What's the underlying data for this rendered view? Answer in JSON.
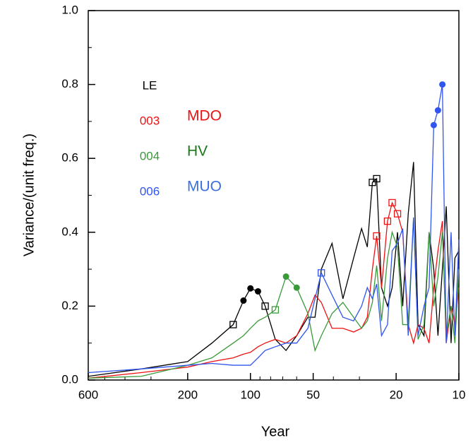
{
  "chart_data": {
    "type": "line",
    "xlabel": "Year",
    "ylabel": "Variance/(unit freq.)",
    "xscale": "log",
    "xlim": [
      600,
      10
    ],
    "ylim": [
      0,
      1
    ],
    "xticks": [
      600,
      200,
      100,
      50,
      20,
      10
    ],
    "xminorticks": [
      500,
      400,
      300,
      90,
      80,
      70,
      60,
      40,
      30
    ],
    "yticks": [
      {
        "value": 0,
        "label": "0.0"
      },
      0.2,
      0.4,
      0.6,
      0.8,
      {
        "value": 1,
        "label": "1.0"
      }
    ],
    "yminorticks": [
      0.1,
      0.3,
      0.5,
      0.7,
      0.9
    ],
    "legend_title": "LE",
    "x": [
      600,
      334,
      200,
      153,
      121,
      108,
      100,
      92,
      85,
      76,
      67.5,
      60,
      53,
      49,
      45.7,
      40.6,
      36,
      32,
      29.3,
      27.5,
      26,
      24.8,
      23.5,
      22,
      20.9,
      19.7,
      18.6,
      17.5,
      16.5,
      15.7,
      14.7,
      13.9,
      13.2,
      12.6,
      12.0,
      11.5,
      10.9,
      10.45,
      10
    ],
    "series": [
      {
        "color": "#000000",
        "values": [
          0.01,
          0.03,
          0.05,
          0.1,
          0.15,
          0.215,
          0.248,
          0.24,
          0.2,
          0.11,
          0.08,
          0.12,
          0.17,
          0.17,
          0.3,
          0.37,
          0.22,
          0.33,
          0.41,
          0.36,
          0.535,
          0.545,
          0.25,
          0.2,
          0.25,
          0.4,
          0.2,
          0.45,
          0.59,
          0.15,
          0.12,
          0.4,
          0.3,
          0.12,
          0.3,
          0.47,
          0.1,
          0.33,
          0.35
        ],
        "markers": [
          null,
          null,
          null,
          null,
          "square",
          "circle",
          "circle",
          "circle",
          "square",
          null,
          null,
          null,
          null,
          null,
          null,
          null,
          null,
          null,
          null,
          null,
          "square",
          "square",
          null,
          null,
          null,
          null,
          null,
          null,
          null,
          null,
          null,
          null,
          null,
          null,
          null,
          null,
          null,
          null,
          null
        ]
      },
      {
        "name": "003",
        "label": "MDO",
        "color": "#ee1111",
        "label_color": "#ee1111",
        "values": [
          0.005,
          0.02,
          0.035,
          0.05,
          0.06,
          0.07,
          0.075,
          0.09,
          0.1,
          0.11,
          0.1,
          0.12,
          0.18,
          0.23,
          0.21,
          0.14,
          0.14,
          0.13,
          0.14,
          0.17,
          0.3,
          0.39,
          0.25,
          0.43,
          0.48,
          0.45,
          0.4,
          0.15,
          0.1,
          0.15,
          0.14,
          0.1,
          0.25,
          0.35,
          0.43,
          0.1,
          0.2,
          0.15,
          0.25
        ],
        "markers": [
          null,
          null,
          null,
          null,
          null,
          null,
          null,
          null,
          null,
          null,
          null,
          null,
          null,
          null,
          null,
          null,
          null,
          null,
          null,
          null,
          null,
          "square",
          null,
          "square",
          "square",
          "square",
          null,
          null,
          null,
          null,
          null,
          null,
          null,
          null,
          null,
          null,
          null,
          null,
          null
        ]
      },
      {
        "name": "004",
        "label": "HV",
        "color": "#3a9a3a",
        "label_color": "#1a7a1a",
        "values": [
          0.005,
          0.01,
          0.04,
          0.06,
          0.1,
          0.12,
          0.14,
          0.16,
          0.17,
          0.19,
          0.28,
          0.25,
          0.18,
          0.08,
          0.12,
          0.18,
          0.21,
          0.17,
          0.14,
          0.16,
          0.21,
          0.31,
          0.16,
          0.33,
          0.4,
          0.36,
          0.15,
          0.15,
          0.44,
          0.11,
          0.15,
          0.4,
          0.2,
          0.28,
          0.4,
          0.12,
          0.2,
          0.1,
          0.3
        ],
        "markers": [
          null,
          null,
          null,
          null,
          null,
          null,
          null,
          null,
          null,
          "square",
          "circle",
          "circle",
          null,
          null,
          null,
          null,
          null,
          null,
          null,
          null,
          null,
          null,
          null,
          null,
          null,
          null,
          null,
          null,
          null,
          null,
          null,
          null,
          null,
          null,
          null,
          null,
          null,
          null,
          null
        ]
      },
      {
        "name": "006",
        "label": "MUO",
        "color": "#2f55ee",
        "label_color": "#3a6fe0",
        "values": [
          0.02,
          0.03,
          0.04,
          0.045,
          0.04,
          0.04,
          0.04,
          0.06,
          0.08,
          0.09,
          0.1,
          0.1,
          0.14,
          0.22,
          0.29,
          0.23,
          0.17,
          0.16,
          0.2,
          0.25,
          0.22,
          0.26,
          0.12,
          0.15,
          0.35,
          0.37,
          0.41,
          0.12,
          0.44,
          0.12,
          0.2,
          0.25,
          0.69,
          0.73,
          0.8,
          0.1,
          0.4,
          0.12,
          0.38
        ],
        "markers": [
          null,
          null,
          null,
          null,
          null,
          null,
          null,
          null,
          null,
          null,
          null,
          null,
          null,
          null,
          "square",
          null,
          null,
          null,
          null,
          null,
          null,
          null,
          null,
          null,
          null,
          null,
          null,
          null,
          null,
          null,
          null,
          null,
          "circle",
          "circle",
          "circle",
          null,
          null,
          null,
          null
        ]
      }
    ]
  }
}
